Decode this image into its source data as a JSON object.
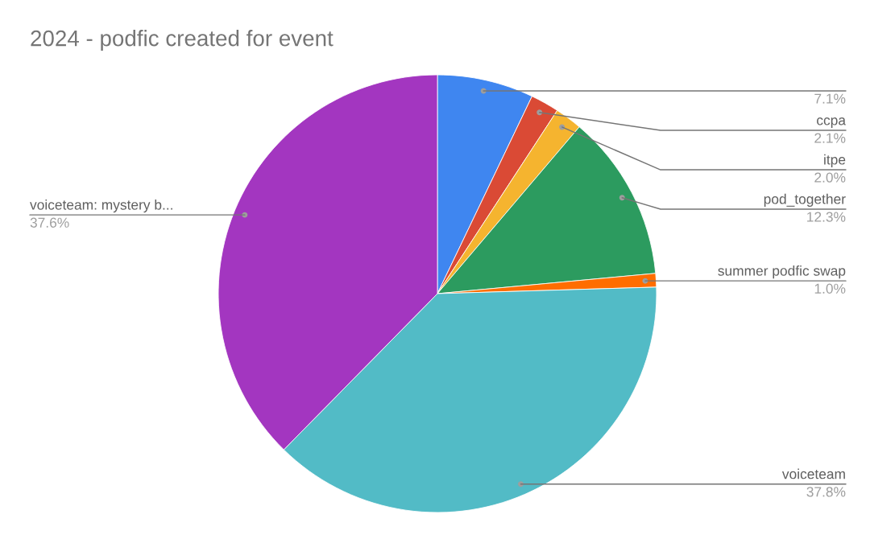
{
  "chart_data": {
    "type": "pie",
    "title": "2024 - podfic created for event",
    "categories": [
      null,
      "ccpa",
      "itpe",
      "pod_together",
      "summer podfic swap",
      "voiceteam",
      "voiceteam: mystery b..."
    ],
    "values": [
      7.1,
      2.1,
      2.0,
      12.3,
      1.0,
      37.8,
      37.6
    ],
    "value_labels": [
      "7.1%",
      "2.1%",
      "2.0%",
      "12.3%",
      "1.0%",
      "37.8%",
      "37.6%"
    ],
    "colors": [
      "#3f86f0",
      "#da4a35",
      "#f5b42f",
      "#2c9b5f",
      "#ff6d00",
      "#52bbc6",
      "#a336c0"
    ]
  }
}
